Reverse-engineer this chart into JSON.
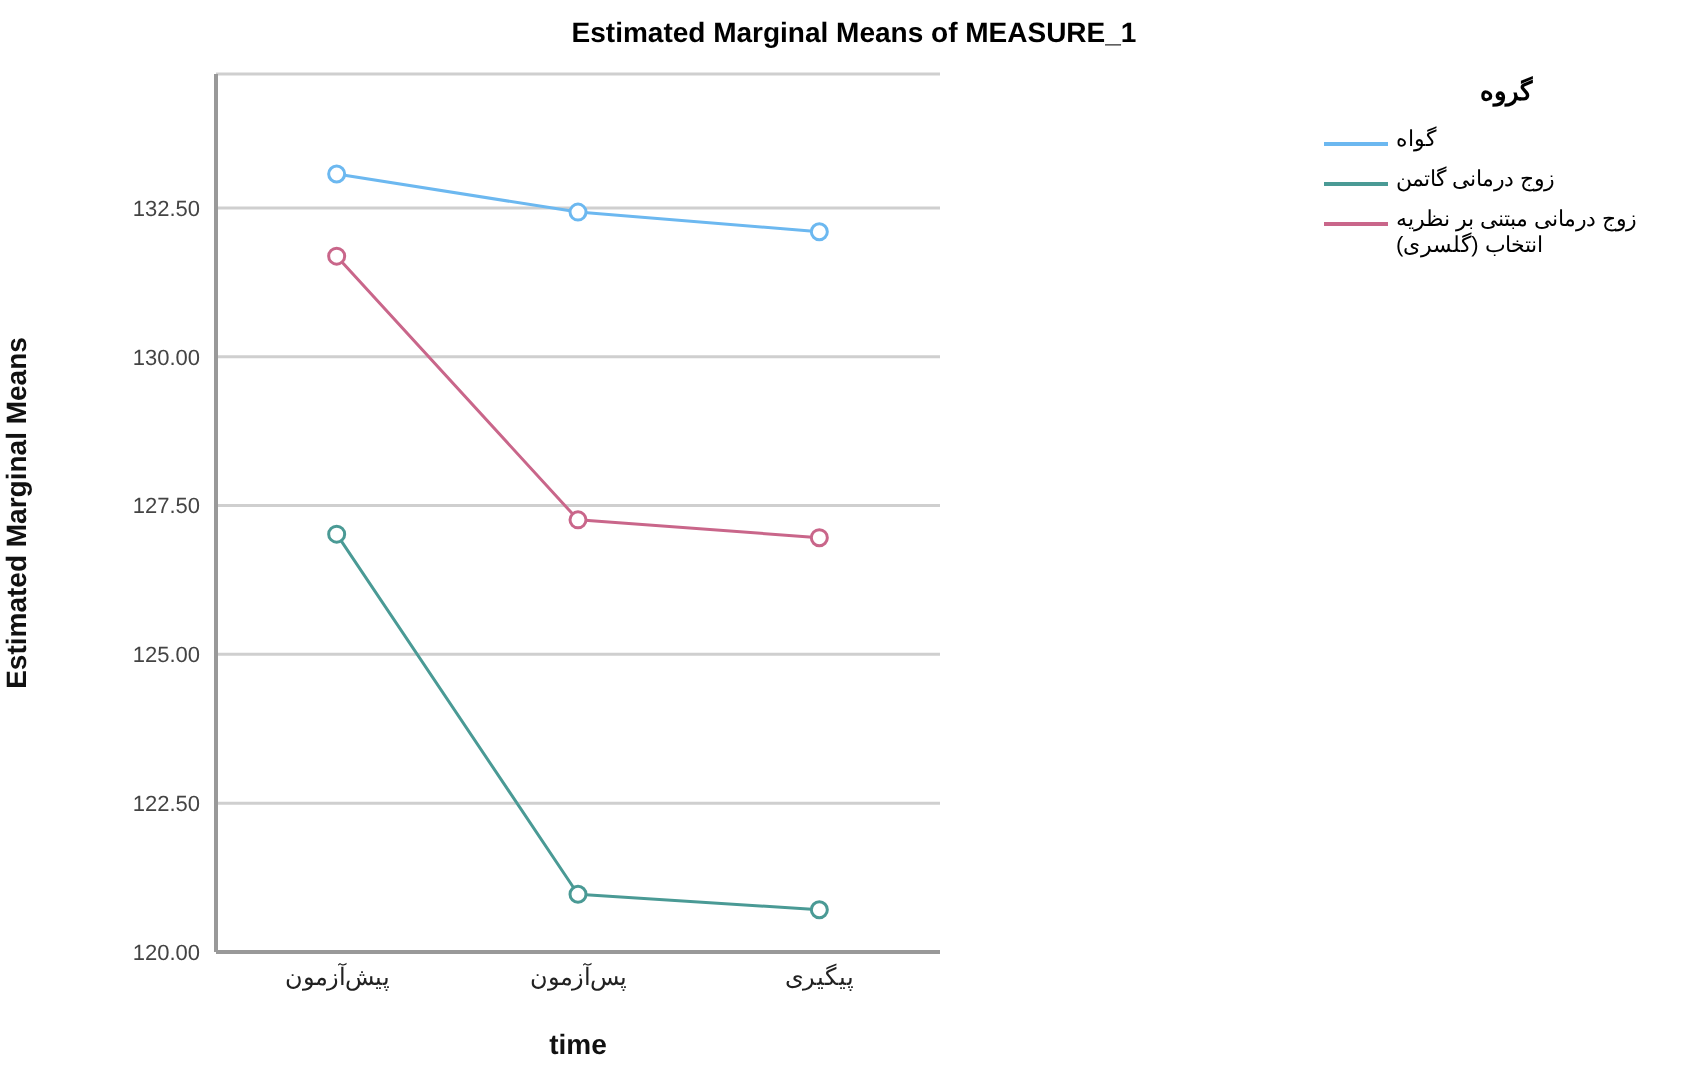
{
  "chart_data": {
    "type": "line",
    "title": "Estimated Marginal Means of MEASURE_1",
    "xlabel": "time",
    "ylabel": "Estimated Marginal Means",
    "legend_title": "گروه",
    "categories": [
      "پیش‌آزمون",
      "پس‌آزمون",
      "پیگیری"
    ],
    "series": [
      {
        "name": "گواه",
        "color": "#6cb8f0",
        "values": [
          133.07,
          132.43,
          132.1
        ]
      },
      {
        "name": "زوج درمانی گاتمن",
        "color": "#4a9a95",
        "values": [
          127.02,
          120.97,
          120.71
        ]
      },
      {
        "name": "زوج درمانی مبتنی بر نظریه انتخاب (گلسری)",
        "color": "#c9668a",
        "values": [
          131.69,
          127.26,
          126.96
        ]
      }
    ],
    "ylim": [
      120,
      134.75
    ],
    "yticks": [
      {
        "value": 120,
        "label": "120.00"
      },
      {
        "value": 122.5,
        "label": "122.50"
      },
      {
        "value": 125,
        "label": "125.00"
      },
      {
        "value": 127.5,
        "label": "127.50"
      },
      {
        "value": 130,
        "label": "130.00"
      },
      {
        "value": 132.5,
        "label": "132.50"
      }
    ],
    "grid": "y",
    "legend": "top right",
    "marker": "circle",
    "line_style": "solid"
  }
}
